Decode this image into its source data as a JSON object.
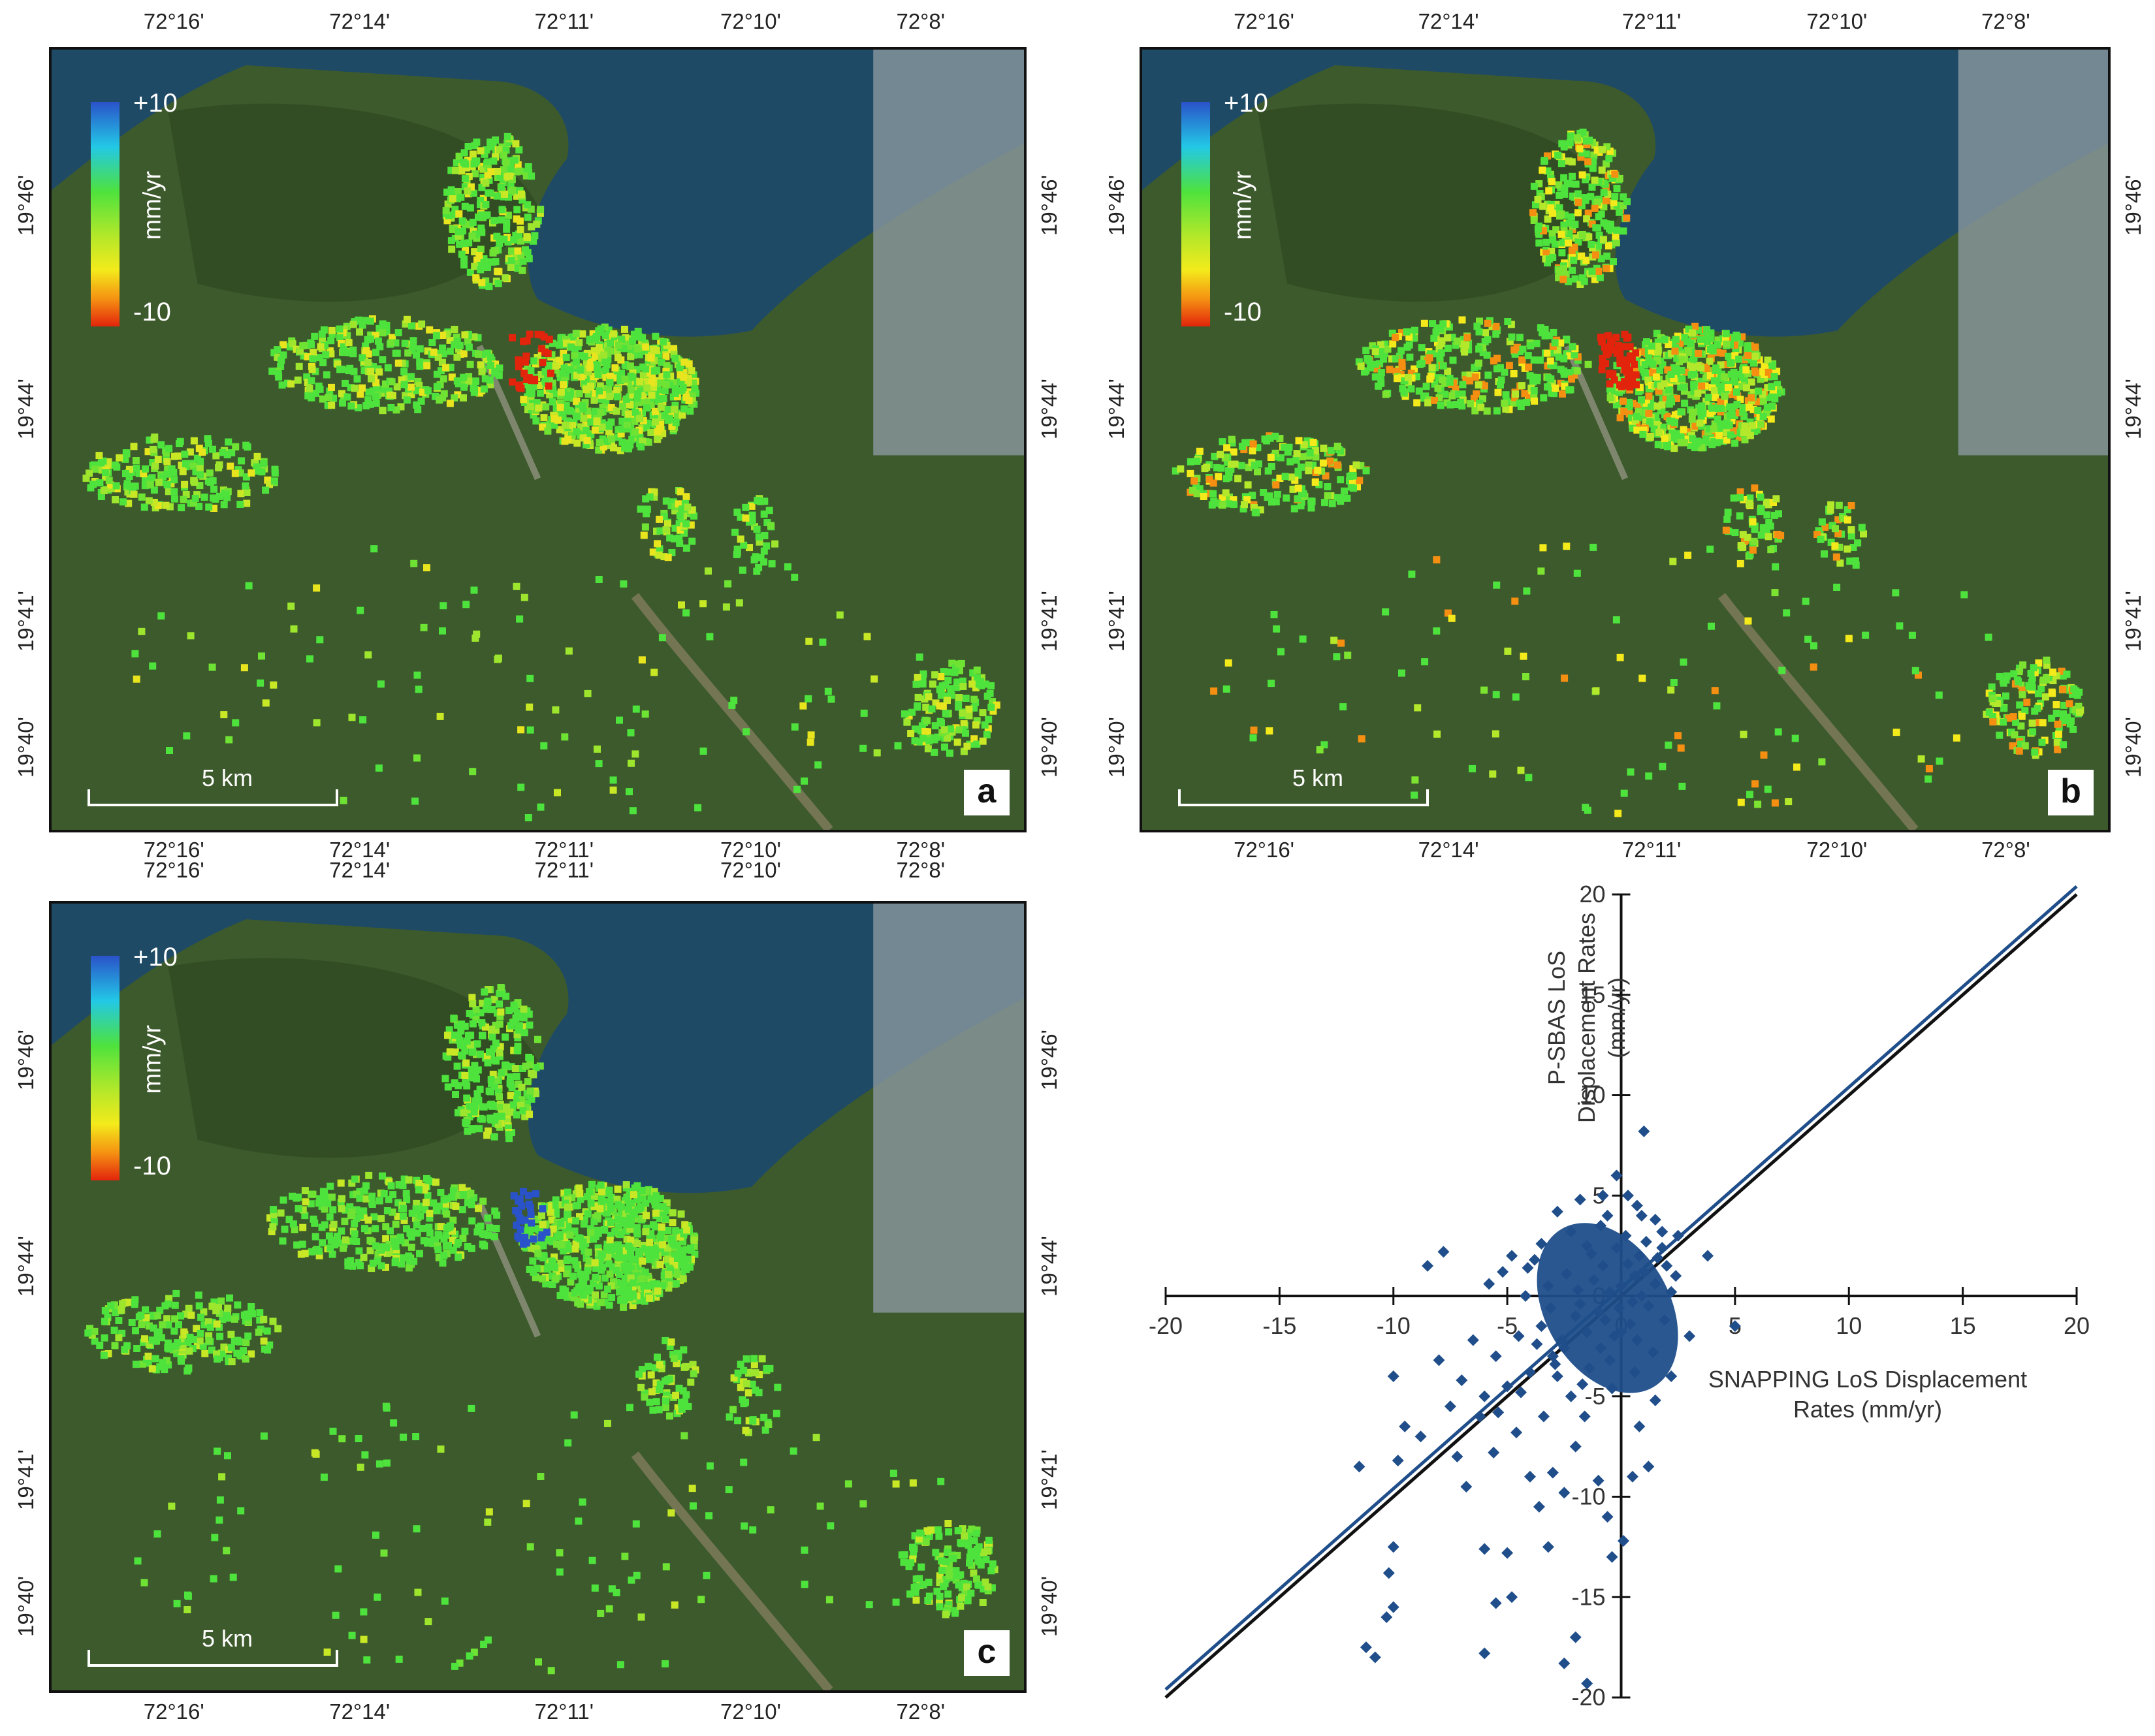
{
  "maps": [
    {
      "id": "a",
      "label": "a",
      "top_ticks": [
        "72°16'",
        "72°14'",
        "72°11'",
        "72°10'",
        "72°8'"
      ],
      "bottom_ticks": [
        "72°16'",
        "72°14'",
        "72°11'",
        "72°10'",
        "72°8'"
      ],
      "left_ticks": [
        "19°46'",
        "19°44'",
        "19°41'",
        "19°40'"
      ],
      "right_ticks": [
        "19°46'",
        "19°44'",
        "19°41'",
        "19°40'"
      ]
    },
    {
      "id": "b",
      "label": "b",
      "top_ticks": [
        "72°16'",
        "72°14'",
        "72°11'",
        "72°10'",
        "72°8'"
      ],
      "bottom_ticks": [
        "72°16'",
        "72°14'",
        "72°11'",
        "72°10'",
        "72°8'"
      ],
      "left_ticks": [
        "19°46'",
        "19°44'",
        "19°41'",
        "19°40'"
      ],
      "right_ticks": [
        "19°46'",
        "19°44'",
        "19°41'",
        "19°40'"
      ]
    },
    {
      "id": "c",
      "label": "c",
      "top_ticks": [
        "72°16'",
        "72°14'",
        "72°11'",
        "72°10'",
        "72°8'"
      ],
      "bottom_ticks": [
        "72°16'",
        "72°14'",
        "72°11'",
        "72°10'",
        "72°8'"
      ],
      "left_ticks": [
        "19°46'",
        "19°44'",
        "19°41'",
        "19°40'"
      ],
      "right_ticks": [
        "19°46'",
        "19°44'",
        "19°41'",
        "19°40'"
      ]
    }
  ],
  "legend": {
    "max": "+10",
    "min": "-10",
    "unit": "mm/yr"
  },
  "scalebar": {
    "text": "5 km"
  },
  "colors": {
    "sea": "#1f4a66",
    "land": "#3d5a2c",
    "high": "#2a52c9",
    "low": "#e2240c",
    "mid": "#4ee23d",
    "marker": "#1f4e8a"
  },
  "chart_data": {
    "type": "scatter",
    "xlabel": "SNAPPING LoS Displacement Rates (mm/yr)",
    "ylabel": "P-SBAS LoS Displacement Rates (mm/yr)",
    "xlim": [
      -20,
      20
    ],
    "ylim": [
      -20,
      20
    ],
    "xticks": [
      -20,
      -15,
      -10,
      -5,
      0,
      5,
      10,
      15,
      20
    ],
    "yticks": [
      -20,
      -15,
      -10,
      -5,
      0,
      5,
      10,
      15,
      20
    ],
    "xtick_labels": [
      "-20",
      "-15",
      "-10",
      "-5",
      "0",
      "5",
      "10",
      "15",
      "20"
    ],
    "ytick_labels": [
      "-20",
      "-15",
      "-10",
      "-5",
      "0",
      "5",
      "10",
      "15",
      "20"
    ],
    "lines": [
      {
        "x": [
          -20,
          20
        ],
        "y": [
          -20,
          20
        ]
      },
      {
        "x": [
          -20,
          20
        ],
        "y": [
          -19.6,
          20.4
        ]
      }
    ],
    "points": [
      {
        "x": 0.0,
        "y": 0.5
      },
      {
        "x": -0.5,
        "y": 0.2
      },
      {
        "x": 0.5,
        "y": -0.3
      },
      {
        "x": -1.0,
        "y": -0.8
      },
      {
        "x": 1.0,
        "y": 1.2
      },
      {
        "x": -1.5,
        "y": -1.8
      },
      {
        "x": 0.8,
        "y": 2.0
      },
      {
        "x": -0.3,
        "y": -2.0
      },
      {
        "x": 0.2,
        "y": 3.0
      },
      {
        "x": -2.0,
        "y": -1.0
      },
      {
        "x": 1.5,
        "y": 0.6
      },
      {
        "x": -0.8,
        "y": 1.5
      },
      {
        "x": 0.4,
        "y": -1.4
      },
      {
        "x": -2.5,
        "y": -2.6
      },
      {
        "x": 1.8,
        "y": 2.4
      },
      {
        "x": -1.2,
        "y": 0.8
      },
      {
        "x": 0.6,
        "y": 1.0
      },
      {
        "x": -0.1,
        "y": -0.6
      },
      {
        "x": 1.2,
        "y": -0.5
      },
      {
        "x": -1.8,
        "y": -0.4
      },
      {
        "x": -0.6,
        "y": 4.0
      },
      {
        "x": 0.3,
        "y": 5.0
      },
      {
        "x": -0.2,
        "y": 6.0
      },
      {
        "x": 1.0,
        "y": 8.2
      },
      {
        "x": 0.7,
        "y": 4.5
      },
      {
        "x": -0.9,
        "y": 3.5
      },
      {
        "x": 1.5,
        "y": 3.8
      },
      {
        "x": -1.5,
        "y": 2.5
      },
      {
        "x": 2.0,
        "y": 1.5
      },
      {
        "x": 2.2,
        "y": 0.2
      },
      {
        "x": -3.0,
        "y": -3.0
      },
      {
        "x": -3.5,
        "y": -1.5
      },
      {
        "x": -2.8,
        "y": -4.0
      },
      {
        "x": -4.0,
        "y": -3.8
      },
      {
        "x": -3.2,
        "y": 0.5
      },
      {
        "x": -4.5,
        "y": -2.0
      },
      {
        "x": -5.0,
        "y": -4.5
      },
      {
        "x": -5.5,
        "y": -3.0
      },
      {
        "x": -4.2,
        "y": 0.0
      },
      {
        "x": -6.0,
        "y": -5.0
      },
      {
        "x": -5.2,
        "y": 1.2
      },
      {
        "x": -4.8,
        "y": 2.0
      },
      {
        "x": -3.8,
        "y": 1.8
      },
      {
        "x": -6.5,
        "y": -2.2
      },
      {
        "x": -7.0,
        "y": -4.2
      },
      {
        "x": -6.2,
        "y": -6.0
      },
      {
        "x": -7.5,
        "y": -5.5
      },
      {
        "x": -8.0,
        "y": -3.2
      },
      {
        "x": -8.5,
        "y": 1.5
      },
      {
        "x": -7.8,
        "y": 2.2
      },
      {
        "x": -5.8,
        "y": 0.6
      },
      {
        "x": -10.0,
        "y": -4.0
      },
      {
        "x": -9.5,
        "y": -6.5
      },
      {
        "x": -9.8,
        "y": -8.2
      },
      {
        "x": -11.5,
        "y": -8.5
      },
      {
        "x": -8.8,
        "y": -7.0
      },
      {
        "x": -7.2,
        "y": -8.0
      },
      {
        "x": -6.8,
        "y": -9.5
      },
      {
        "x": -5.6,
        "y": -7.8
      },
      {
        "x": -4.6,
        "y": -6.8
      },
      {
        "x": -4.0,
        "y": -9.0
      },
      {
        "x": -3.6,
        "y": -10.5
      },
      {
        "x": -3.0,
        "y": -8.8
      },
      {
        "x": -2.5,
        "y": -9.8
      },
      {
        "x": -2.0,
        "y": -7.5
      },
      {
        "x": -1.6,
        "y": -6.0
      },
      {
        "x": -1.0,
        "y": -9.2
      },
      {
        "x": -0.6,
        "y": -11.0
      },
      {
        "x": 0.1,
        "y": -12.2
      },
      {
        "x": -0.4,
        "y": -13.0
      },
      {
        "x": -3.2,
        "y": -12.5
      },
      {
        "x": -5.0,
        "y": -12.8
      },
      {
        "x": -6.0,
        "y": -12.6
      },
      {
        "x": -4.8,
        "y": -15.0
      },
      {
        "x": -5.5,
        "y": -15.3
      },
      {
        "x": -10.0,
        "y": -12.5
      },
      {
        "x": -10.2,
        "y": -13.8
      },
      {
        "x": -10.0,
        "y": -15.5
      },
      {
        "x": -10.3,
        "y": -16.0
      },
      {
        "x": -11.2,
        "y": -17.5
      },
      {
        "x": -10.8,
        "y": -18.0
      },
      {
        "x": -6.0,
        "y": -17.8
      },
      {
        "x": -2.0,
        "y": -17.0
      },
      {
        "x": -2.5,
        "y": -18.3
      },
      {
        "x": -1.5,
        "y": -19.3
      },
      {
        "x": 0.5,
        "y": -9.0
      },
      {
        "x": 1.2,
        "y": -8.5
      },
      {
        "x": 1.5,
        "y": -5.2
      },
      {
        "x": 0.8,
        "y": -6.5
      },
      {
        "x": 2.2,
        "y": -4.0
      },
      {
        "x": 3.0,
        "y": -2.0
      },
      {
        "x": 3.8,
        "y": 2.0
      },
      {
        "x": 5.0,
        "y": -1.5
      },
      {
        "x": 2.5,
        "y": 3.0
      },
      {
        "x": -2.2,
        "y": 3.2
      },
      {
        "x": -2.8,
        "y": 4.2
      },
      {
        "x": -1.8,
        "y": 4.8
      },
      {
        "x": -0.8,
        "y": 5.0
      },
      {
        "x": 0.9,
        "y": 4.0
      },
      {
        "x": 1.8,
        "y": 3.2
      },
      {
        "x": -3.5,
        "y": 2.6
      },
      {
        "x": -2.2,
        "y": -5.0
      },
      {
        "x": -3.4,
        "y": -6.0
      },
      {
        "x": -1.4,
        "y": -3.6
      },
      {
        "x": -0.4,
        "y": -4.6
      },
      {
        "x": 0.6,
        "y": -3.8
      },
      {
        "x": 1.4,
        "y": -2.8
      },
      {
        "x": -2.6,
        "y": -2.2
      },
      {
        "x": -4.4,
        "y": -4.8
      },
      {
        "x": -5.4,
        "y": -5.8
      },
      {
        "x": 0.0,
        "y": -1.8
      },
      {
        "x": -0.9,
        "y": -2.6
      },
      {
        "x": 0.9,
        "y": 0.0
      },
      {
        "x": -1.3,
        "y": 2.1
      },
      {
        "x": 1.6,
        "y": 1.9
      },
      {
        "x": -0.7,
        "y": -1.2
      },
      {
        "x": 0.3,
        "y": 1.6
      },
      {
        "x": -1.9,
        "y": 0.3
      },
      {
        "x": 1.1,
        "y": 2.7
      },
      {
        "x": -0.2,
        "y": 2.4
      },
      {
        "x": -2.4,
        "y": 1.1
      },
      {
        "x": -3.1,
        "y": -0.6
      },
      {
        "x": -3.7,
        "y": -2.4
      },
      {
        "x": -2.9,
        "y": -3.4
      },
      {
        "x": -1.7,
        "y": -4.4
      },
      {
        "x": -0.5,
        "y": -3.2
      },
      {
        "x": 0.7,
        "y": -2.2
      },
      {
        "x": 1.9,
        "y": -1.2
      },
      {
        "x": 2.4,
        "y": 1.0
      },
      {
        "x": -4.1,
        "y": 1.4
      }
    ]
  }
}
